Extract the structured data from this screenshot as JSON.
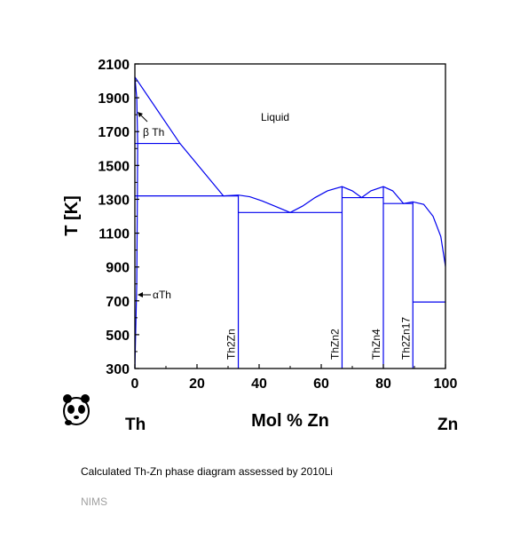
{
  "chart_data": {
    "type": "phase-diagram",
    "xlabel": "Mol % Zn",
    "ylabel": "T [K]",
    "xlim": [
      0,
      100
    ],
    "ylim": [
      300,
      2100
    ],
    "x_ticks": [
      0,
      20,
      40,
      60,
      80,
      100
    ],
    "y_ticks": [
      300,
      500,
      700,
      900,
      1100,
      1300,
      1500,
      1700,
      1900,
      2100
    ],
    "left_element": "Th",
    "right_element": "Zn",
    "line_color": "#0000ee",
    "phase_labels": {
      "liquid": "Liquid",
      "beta": "β Th",
      "alpha": "αTh"
    },
    "compounds": [
      {
        "name": "Th2Zn",
        "x": 33.3
      },
      {
        "name": "ThZn2",
        "x": 66.7
      },
      {
        "name": "ThZn4",
        "x": 80.0
      },
      {
        "name": "Th2Zn17",
        "x": 89.5
      }
    ],
    "liquidus": [
      [
        0,
        2023
      ],
      [
        14.5,
        1630
      ],
      [
        28.5,
        1320
      ],
      [
        33.3,
        1325
      ],
      [
        37,
        1315
      ],
      [
        41,
        1290
      ],
      [
        45,
        1260
      ],
      [
        50,
        1222
      ],
      [
        54,
        1260
      ],
      [
        58,
        1310
      ],
      [
        62,
        1350
      ],
      [
        66.7,
        1375
      ],
      [
        70,
        1350
      ],
      [
        73,
        1310
      ],
      [
        76,
        1350
      ],
      [
        80,
        1375
      ],
      [
        83,
        1350
      ],
      [
        86.5,
        1275
      ],
      [
        89.5,
        1285
      ],
      [
        93,
        1270
      ],
      [
        96,
        1200
      ],
      [
        98.5,
        1080
      ],
      [
        100,
        903
      ]
    ],
    "horizontals": [
      {
        "x1": 0,
        "x2": 14.5,
        "y": 1630
      },
      {
        "x1": 0,
        "x2": 33.3,
        "y": 1320
      },
      {
        "x1": 33.3,
        "x2": 66.7,
        "y": 1222
      },
      {
        "x1": 66.7,
        "x2": 80.0,
        "y": 1310
      },
      {
        "x1": 80.0,
        "x2": 89.5,
        "y": 1275
      },
      {
        "x1": 89.5,
        "x2": 100,
        "y": 693
      }
    ],
    "th_boundary": [
      [
        0,
        300
      ],
      [
        0.6,
        800
      ],
      [
        0.8,
        1320
      ],
      [
        0.9,
        1630
      ],
      [
        0.6,
        1900
      ],
      [
        0,
        2023
      ]
    ]
  },
  "caption": "Calculated Th-Zn phase diagram assessed by 2010Li",
  "source": "NIMS"
}
